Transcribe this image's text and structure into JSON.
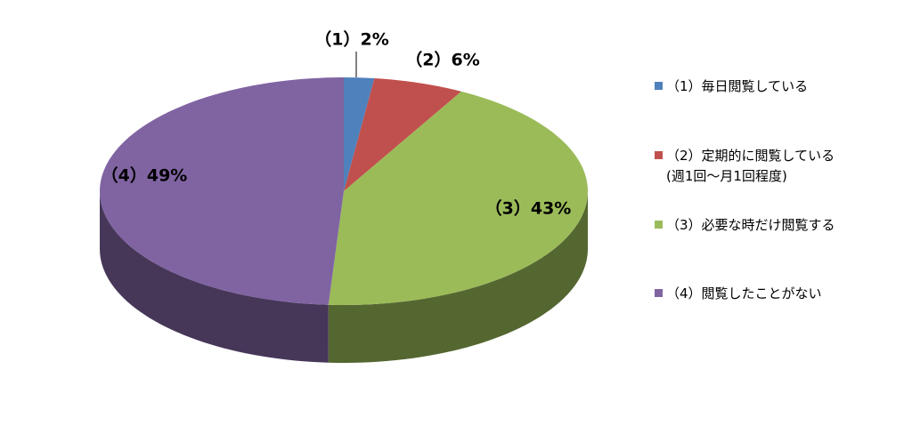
{
  "chart_data": {
    "type": "pie3d",
    "categories": [
      "（1）毎日閲覧している",
      "（2）定期的に閲覧している\n(週1回～月1回程度)",
      "（3）必要な時だけ閲覧する",
      "（4）閲覧したことがない"
    ],
    "values": [
      2,
      6,
      43,
      49
    ],
    "value_labels": [
      "（1）2%",
      "（2）6%",
      "（3）43%",
      "（4）49%"
    ],
    "colors": [
      "#4f81bd",
      "#c0504d",
      "#9bbb59",
      "#8064a2"
    ],
    "legend": "right"
  }
}
